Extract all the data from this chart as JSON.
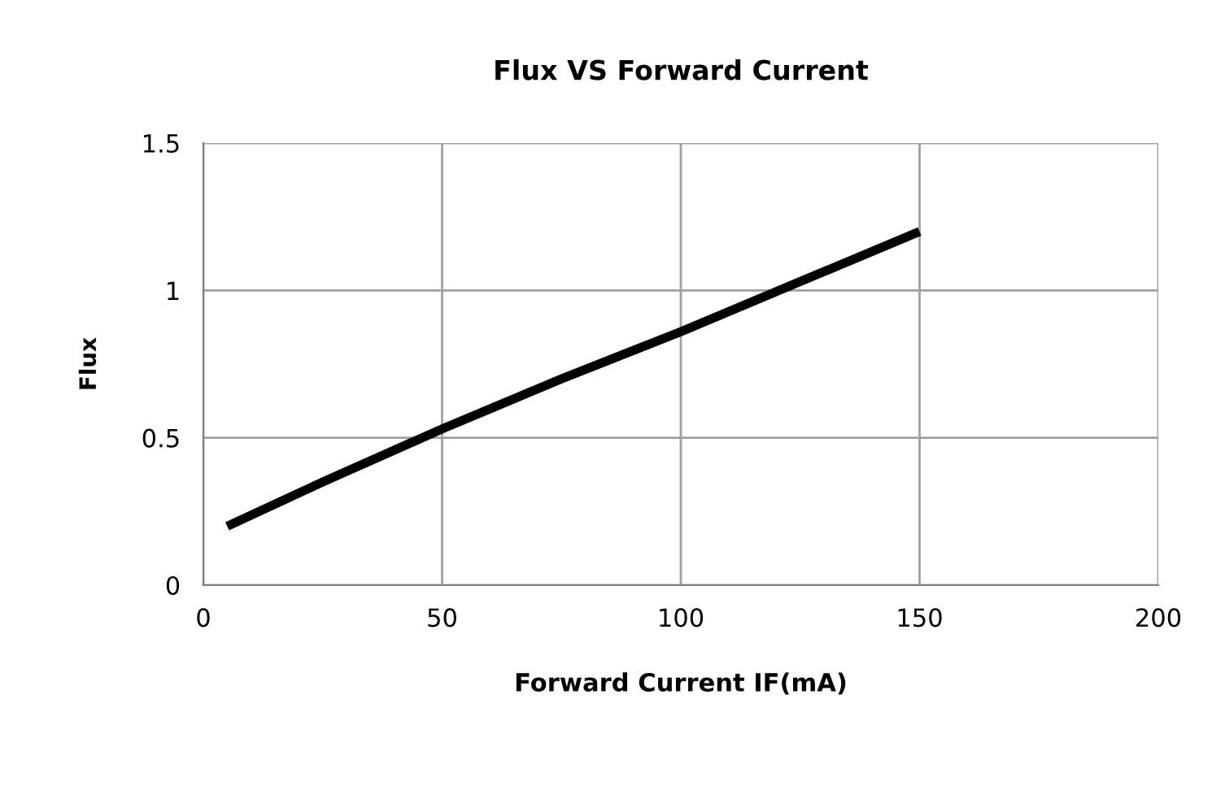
{
  "chart_data": {
    "type": "line",
    "title": "Flux VS Forward Current",
    "xlabel": "Forward Current IF(mA)",
    "ylabel": "Flux",
    "series": [
      {
        "color": "#000000",
        "x": [
          5,
          25,
          50,
          75,
          100,
          125,
          150
        ],
        "values": [
          0.2,
          0.35,
          0.53,
          0.7,
          0.86,
          1.03,
          1.2
        ]
      }
    ],
    "xlim": [
      0,
      200
    ],
    "xticks": [
      0,
      50,
      100,
      150,
      200
    ],
    "ylim": [
      0,
      1.5
    ],
    "yticks": [
      0,
      0.5,
      1,
      1.5
    ],
    "grid": true,
    "legend": false,
    "marker": "none",
    "line_style": "solid"
  }
}
